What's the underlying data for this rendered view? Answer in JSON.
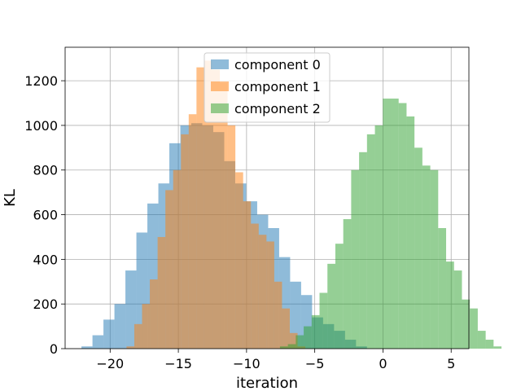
{
  "chart_data": {
    "type": "bar",
    "histogram": true,
    "xlabel": "iteration",
    "ylabel": "KL",
    "xlim": [
      -23.3,
      6.3
    ],
    "ylim": [
      0,
      1350
    ],
    "grid": true,
    "legend_position": "top-center",
    "xticks": [
      -20,
      -15,
      -10,
      -5,
      0,
      5
    ],
    "xtick_labels": [
      "−20",
      "−15",
      "−10",
      "−5",
      "0",
      "5"
    ],
    "yticks": [
      0,
      200,
      400,
      600,
      800,
      1000,
      1200
    ],
    "ytick_labels": [
      "0",
      "200",
      "400",
      "600",
      "800",
      "1000",
      "1200"
    ],
    "series": [
      {
        "name": "component 0",
        "color": "#1f77b4",
        "bin_start": -22.1,
        "bin_width": 0.805,
        "values": [
          10,
          60,
          130,
          200,
          350,
          520,
          650,
          740,
          920,
          1000,
          1010,
          1000,
          970,
          840,
          740,
          660,
          600,
          540,
          410,
          300,
          240,
          140,
          110,
          80,
          40,
          10
        ]
      },
      {
        "name": "component 1",
        "color": "#ff7f0e",
        "bin_start": -18.8,
        "bin_width": 0.57,
        "values": [
          10,
          110,
          200,
          310,
          500,
          710,
          800,
          960,
          1050,
          1260,
          1290,
          1250,
          1190,
          1000,
          790,
          660,
          560,
          510,
          480,
          300,
          180,
          70,
          10
        ]
      },
      {
        "name": "component 2",
        "color": "#2ca02c",
        "bin_start": -7.55,
        "bin_width": 0.58,
        "values": [
          10,
          20,
          60,
          100,
          150,
          250,
          380,
          470,
          580,
          800,
          880,
          960,
          1000,
          1120,
          1120,
          1100,
          1040,
          900,
          820,
          800,
          540,
          390,
          350,
          220,
          180,
          80,
          40,
          10
        ]
      }
    ]
  }
}
